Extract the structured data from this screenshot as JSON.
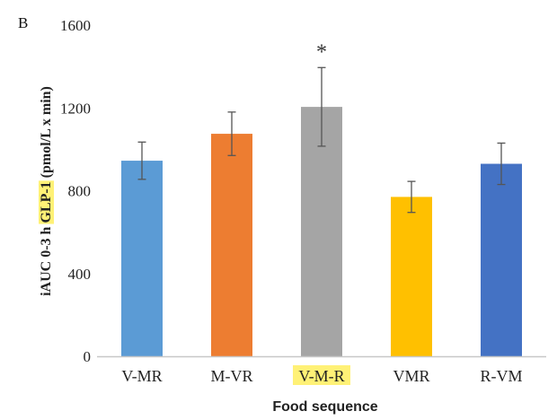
{
  "panel_label": "B",
  "highlight_color": "#fff176",
  "chart_data": {
    "type": "bar",
    "title": "",
    "xlabel": "Food sequence",
    "ylabel_parts": [
      "iAUC 0-3 h ",
      "GLP-1",
      " (pmol/L x min)"
    ],
    "ylabel_highlight_index": 1,
    "ylim": [
      0,
      1600
    ],
    "yticks": [
      "0",
      "400",
      "800",
      "1200",
      "1600"
    ],
    "ytick_values": [
      0,
      400,
      800,
      1200,
      1600
    ],
    "grid": false,
    "categories": [
      "V-MR",
      "M-VR",
      "V-M-R",
      "VMR",
      "R-VM"
    ],
    "highlighted_category_index": 2,
    "values": [
      945,
      1075,
      1205,
      770,
      930
    ],
    "errors": [
      90,
      105,
      190,
      75,
      100
    ],
    "colors": [
      "#5b9bd5",
      "#ed7d31",
      "#a5a5a5",
      "#ffc000",
      "#4472c4"
    ],
    "significance": [
      {
        "category_index": 2,
        "label": "*"
      }
    ]
  }
}
